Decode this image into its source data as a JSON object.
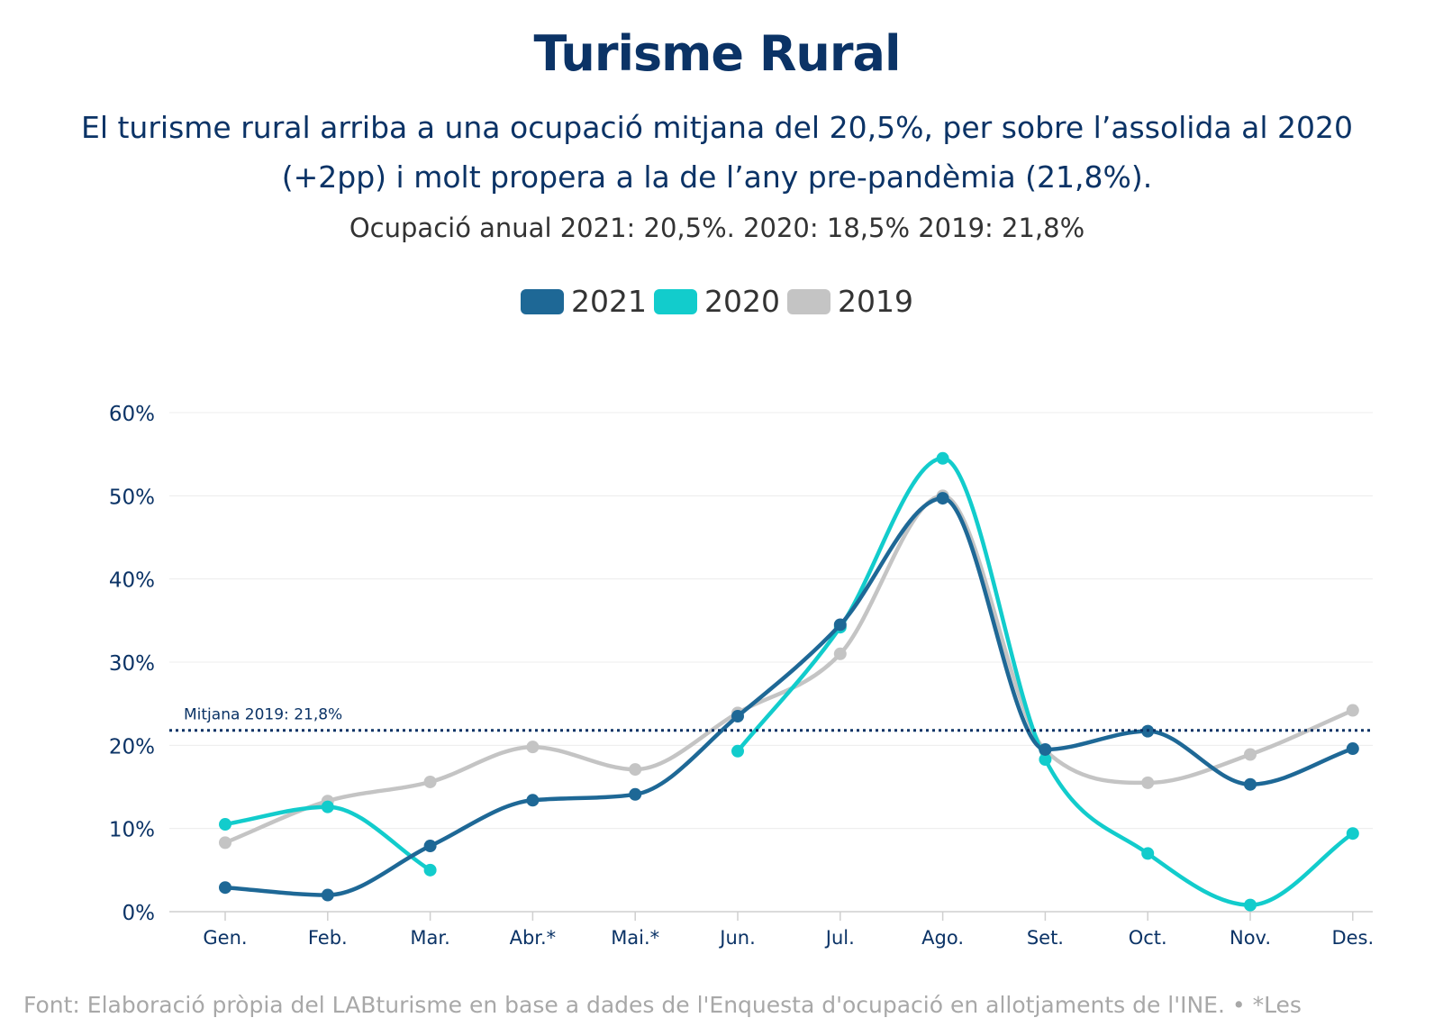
{
  "header": {
    "title": "Turisme Rural",
    "subtitle": "El turisme rural arriba a una ocupació mitjana del 20,5%, per sobre l’assolida al 2020 (+2pp) i molt propera a la de l’any pre-pandèmia (21,8%).",
    "note": "Ocupació anual 2021: 20,5%. 2020: 18,5% 2019: 21,8%"
  },
  "footer": {
    "text": "Font: Elaboració pròpia del LABturisme en base a dades de l'Enquesta d'ocupació en allotjaments de l'INE. • *Les"
  },
  "chart_data": {
    "type": "line",
    "title": "Turisme Rural",
    "categories": [
      "Gen.",
      "Feb.",
      "Mar.",
      "Abr.*",
      "Mai.*",
      "Jun.",
      "Jul.",
      "Ago.",
      "Set.",
      "Oct.",
      "Nov.",
      "Des."
    ],
    "y_ticks": [
      0,
      10,
      20,
      30,
      40,
      50,
      60
    ],
    "y_tick_labels": [
      "0%",
      "10%",
      "20%",
      "30%",
      "40%",
      "50%",
      "60%"
    ],
    "ylim": [
      0,
      60
    ],
    "grid": true,
    "legend_position": "top-center",
    "series": [
      {
        "name": "2019",
        "color": "#c4c4c4",
        "values": [
          8.3,
          13.3,
          15.6,
          19.8,
          17.1,
          23.9,
          31.0,
          50.0,
          19.4,
          15.5,
          18.9,
          24.2
        ]
      },
      {
        "name": "2020",
        "color": "#12cccc",
        "values": [
          10.5,
          12.6,
          5.0,
          null,
          null,
          19.3,
          34.2,
          54.5,
          18.3,
          7.0,
          0.8,
          9.4
        ]
      },
      {
        "name": "2021",
        "color": "#1e6896",
        "values": [
          2.9,
          2.0,
          7.9,
          13.4,
          14.1,
          23.5,
          34.5,
          49.7,
          19.5,
          21.7,
          15.3,
          19.6
        ]
      }
    ],
    "reference_line": {
      "value": 21.8,
      "label": "Mitjana 2019: 21,8%",
      "color": "#0b3366"
    }
  }
}
